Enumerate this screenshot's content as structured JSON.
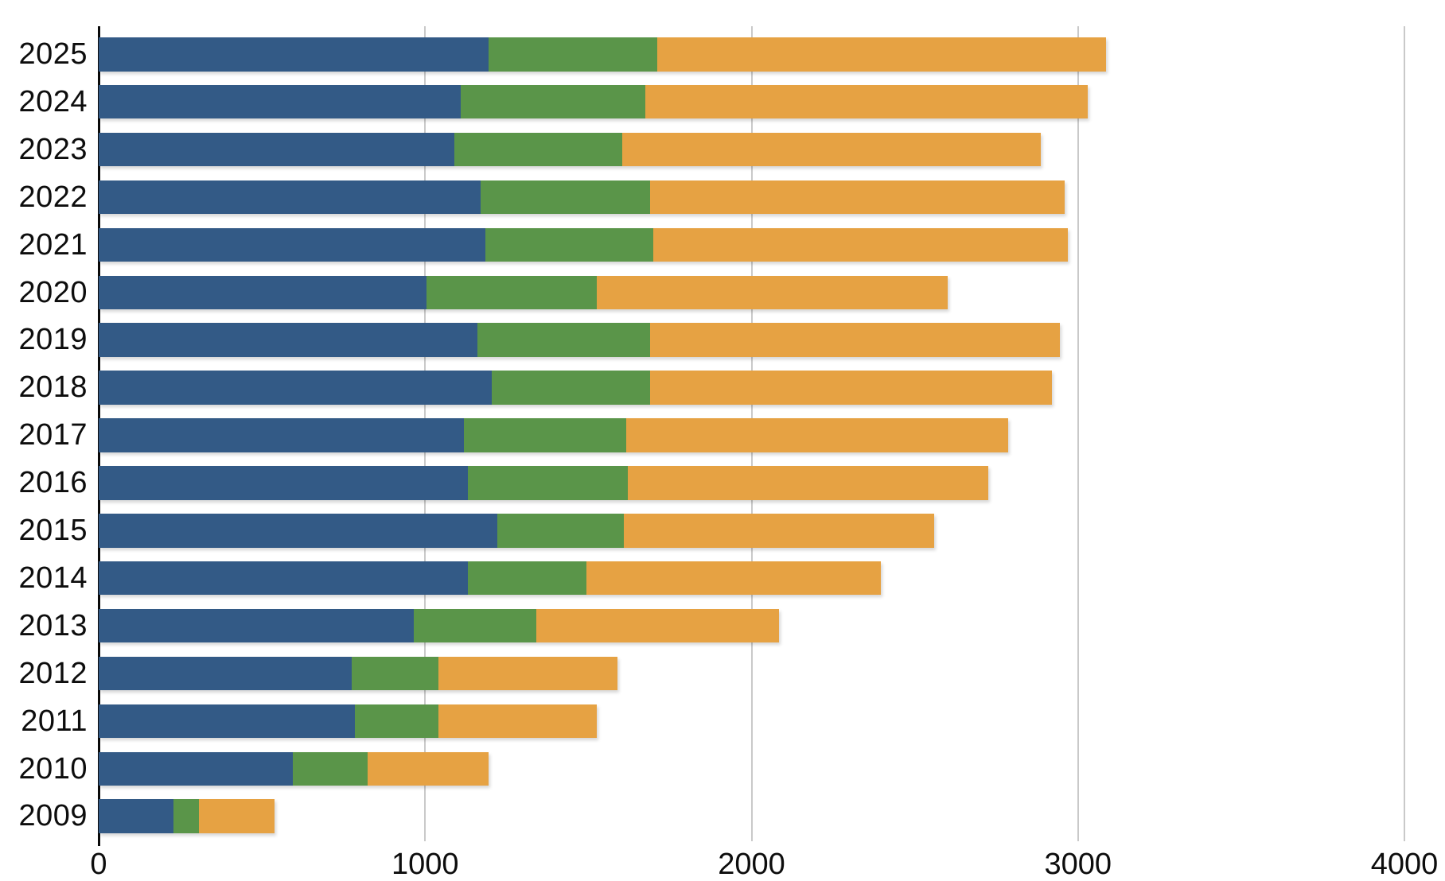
{
  "chart_data": {
    "type": "bar",
    "orientation": "horizontal",
    "stacked": true,
    "title": "",
    "xlabel": "",
    "ylabel": "",
    "categories": [
      "2025",
      "2024",
      "2023",
      "2022",
      "2021",
      "2020",
      "2019",
      "2018",
      "2017",
      "2016",
      "2015",
      "2014",
      "2013",
      "2012",
      "2011",
      "2010",
      "2009"
    ],
    "series": [
      {
        "name": "blue",
        "color": "#335A86",
        "values": [
          1195,
          1110,
          1090,
          1170,
          1185,
          1005,
          1160,
          1205,
          1120,
          1130,
          1220,
          1130,
          965,
          775,
          785,
          595,
          230
        ]
      },
      {
        "name": "green",
        "color": "#5A9549",
        "values": [
          515,
          565,
          515,
          520,
          515,
          520,
          530,
          485,
          495,
          490,
          390,
          365,
          375,
          265,
          255,
          230,
          78
        ]
      },
      {
        "name": "orange",
        "color": "#E6A243",
        "values": [
          1375,
          1355,
          1280,
          1270,
          1270,
          1075,
          1255,
          1230,
          1170,
          1105,
          950,
          900,
          745,
          550,
          485,
          370,
          230
        ]
      }
    ],
    "totals": [
      3085,
      3030,
      2885,
      2960,
      2970,
      2600,
      2945,
      2920,
      2785,
      2725,
      2560,
      2395,
      2085,
      1590,
      1525,
      1195,
      538
    ],
    "xlim": [
      0,
      4000
    ],
    "x_ticks": [
      0,
      1000,
      2000,
      3000,
      4000
    ],
    "grid": true,
    "legend": false
  },
  "style": {
    "background": "#ffffff",
    "grid_color": "#c9c9c9",
    "axis_color": "#0a0a0a",
    "label_color": "#0d0d0d"
  }
}
